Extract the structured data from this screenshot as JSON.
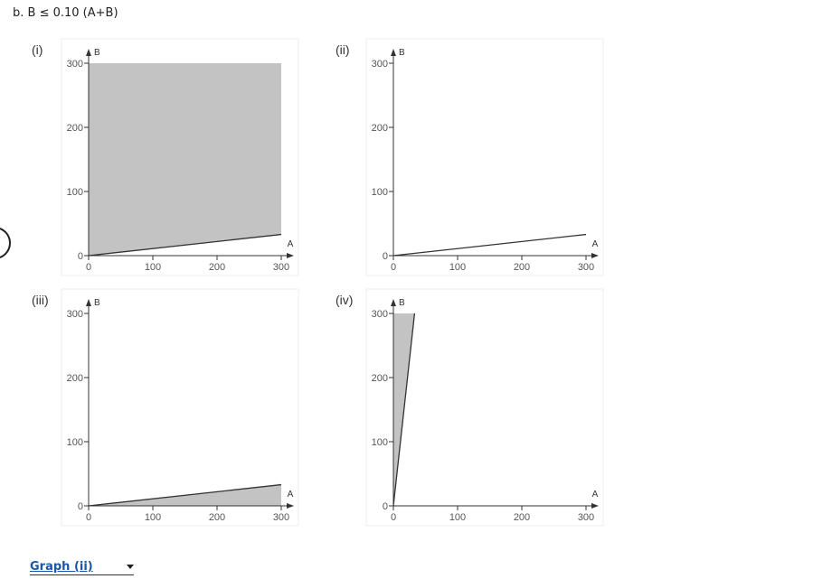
{
  "question": "b. B ≤ 0.10 (A+B)",
  "graphs": [
    {
      "label": "(i)",
      "x_label": "A",
      "y_label": "B",
      "xticks": [
        0,
        100,
        200,
        300
      ],
      "yticks": [
        0,
        100,
        200,
        300
      ],
      "line": [
        [
          0,
          0
        ],
        [
          300,
          33
        ]
      ],
      "shade": "above"
    },
    {
      "label": "(ii)",
      "x_label": "A",
      "y_label": "B",
      "xticks": [
        0,
        100,
        200,
        300
      ],
      "yticks": [
        0,
        100,
        200,
        300
      ],
      "line": [
        [
          0,
          0
        ],
        [
          300,
          33
        ]
      ],
      "shade": null
    },
    {
      "label": "(iii)",
      "x_label": "A",
      "y_label": "B",
      "xticks": [
        0,
        100,
        200,
        300
      ],
      "yticks": [
        0,
        100,
        200,
        300
      ],
      "line": [
        [
          0,
          0
        ],
        [
          300,
          33
        ]
      ],
      "shade": "below"
    },
    {
      "label": "(iv)",
      "x_label": "A",
      "y_label": "B",
      "xticks": [
        0,
        100,
        200,
        300
      ],
      "yticks": [
        0,
        100,
        200,
        300
      ],
      "line": [
        [
          0,
          0
        ],
        [
          33,
          300
        ]
      ],
      "shade": "above"
    }
  ],
  "answer": "Graph (ii)"
}
